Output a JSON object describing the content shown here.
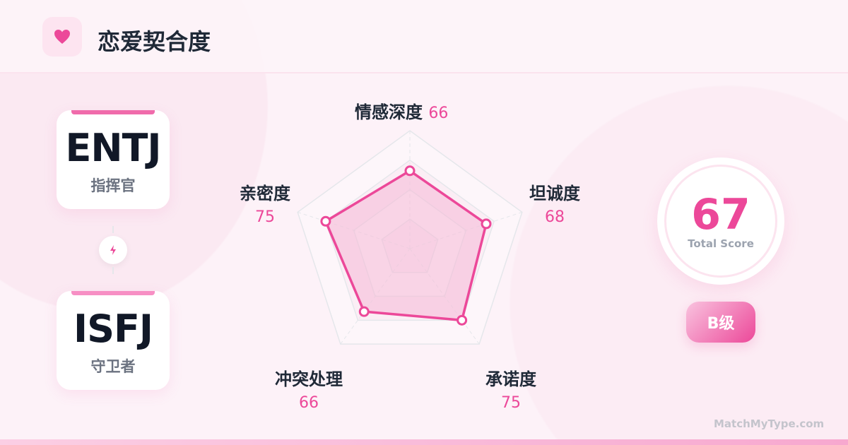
{
  "header": {
    "title": "恋爱契合度",
    "icon": "heart-icon"
  },
  "person_a": {
    "type": "ENTJ",
    "name": "指挥官"
  },
  "person_b": {
    "type": "ISFJ",
    "name": "守卫者"
  },
  "connector_icon": "lightning-icon",
  "score": {
    "value": "67",
    "caption": "Total Score",
    "grade": "B级"
  },
  "watermark": "MatchMyType.com",
  "colors": {
    "accent": "#ec4899",
    "fill": "#f5b8d6"
  },
  "chart_data": {
    "type": "radar",
    "categories": [
      "情感深度",
      "坦诚度",
      "承诺度",
      "冲突处理",
      "亲密度"
    ],
    "values": [
      66,
      68,
      75,
      66,
      75
    ],
    "labels": [
      "66",
      "68",
      "75",
      "66",
      "75"
    ],
    "range": [
      0,
      100
    ],
    "grid": true
  }
}
